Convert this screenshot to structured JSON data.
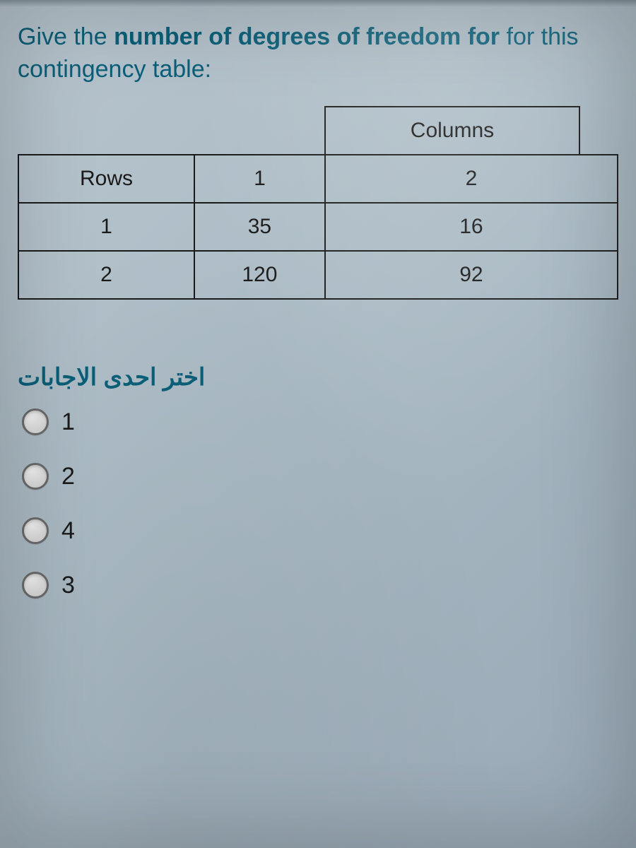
{
  "question": {
    "prefix": "Give the ",
    "bold": "number of degrees of freedom for",
    "suffix": " for this contingency table:"
  },
  "table": {
    "columns_header": "Columns",
    "rows_header": "Rows",
    "col_labels": [
      "1",
      "2"
    ],
    "row_labels": [
      "1",
      "2"
    ],
    "cells": {
      "r1c1": "35",
      "r1c2": "16",
      "r2c1": "120",
      "r2c2": "92"
    },
    "border_color": "#1a1a1a",
    "text_color": "#1a1a1a",
    "cell_fontsize": 30
  },
  "answers": {
    "prompt": "اختر احدى الاجابات",
    "options": [
      "1",
      "2",
      "4",
      "3"
    ]
  },
  "colors": {
    "prompt_color": "#0a5f78",
    "background_top": "#b8c5ce",
    "background_bottom": "#98a8b5",
    "radio_border": "#6b6b6b"
  }
}
